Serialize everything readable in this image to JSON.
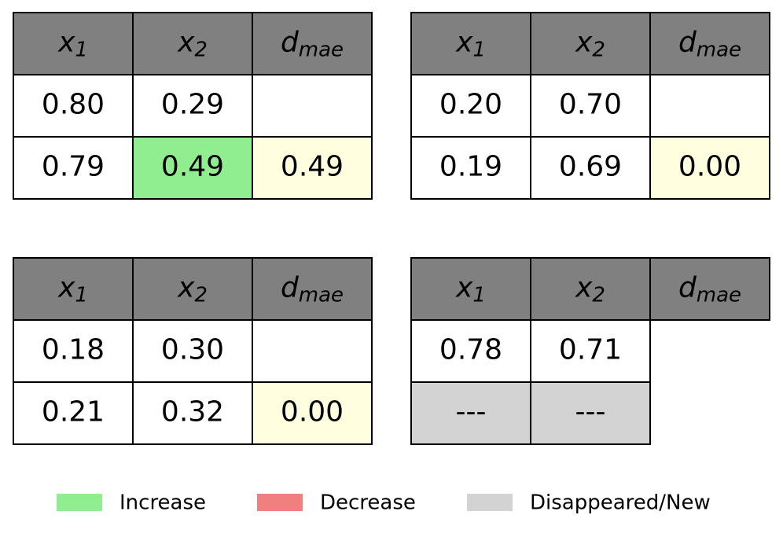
{
  "tables": [
    {
      "header": [
        {
          "base": "x",
          "sub": "1"
        },
        {
          "base": "x",
          "sub": "2"
        },
        {
          "base": "d",
          "sub": "mae"
        }
      ],
      "rows": [
        [
          "0.80",
          "0.29",
          null
        ],
        [
          "0.79",
          "0.49",
          "0.49"
        ]
      ],
      "fills": [
        [
          null,
          null,
          null
        ],
        [
          null,
          "#90ee90",
          "#ffffe0"
        ]
      ]
    },
    {
      "header": [
        {
          "base": "x",
          "sub": "1"
        },
        {
          "base": "x",
          "sub": "2"
        },
        {
          "base": "d",
          "sub": "mae"
        }
      ],
      "rows": [
        [
          "0.20",
          "0.70",
          null
        ],
        [
          "0.19",
          "0.69",
          "0.00"
        ]
      ],
      "fills": [
        [
          null,
          null,
          null
        ],
        [
          null,
          null,
          "#ffffe0"
        ]
      ]
    },
    {
      "header": [
        {
          "base": "x",
          "sub": "1"
        },
        {
          "base": "x",
          "sub": "2"
        },
        {
          "base": "d",
          "sub": "mae"
        }
      ],
      "rows": [
        [
          "0.18",
          "0.30",
          null
        ],
        [
          "0.21",
          "0.32",
          "0.00"
        ]
      ],
      "fills": [
        [
          null,
          null,
          null
        ],
        [
          null,
          null,
          "#ffffe0"
        ]
      ]
    },
    {
      "header": [
        {
          "base": "x",
          "sub": "1"
        },
        {
          "base": "x",
          "sub": "2"
        },
        {
          "base": "d",
          "sub": "mae"
        }
      ],
      "rows": [
        [
          "0.78",
          "0.71"
        ],
        [
          "---",
          "---"
        ]
      ],
      "fills": [
        [
          null,
          null
        ],
        [
          "#d3d3d3",
          "#d3d3d3"
        ]
      ]
    }
  ],
  "header_color": "#808080",
  "legend": [
    {
      "label": "Increase",
      "color": "#90ee90"
    },
    {
      "label": "Decrease",
      "color": "#f08080"
    },
    {
      "label": "Disappeared/New",
      "color": "#d3d3d3"
    }
  ]
}
